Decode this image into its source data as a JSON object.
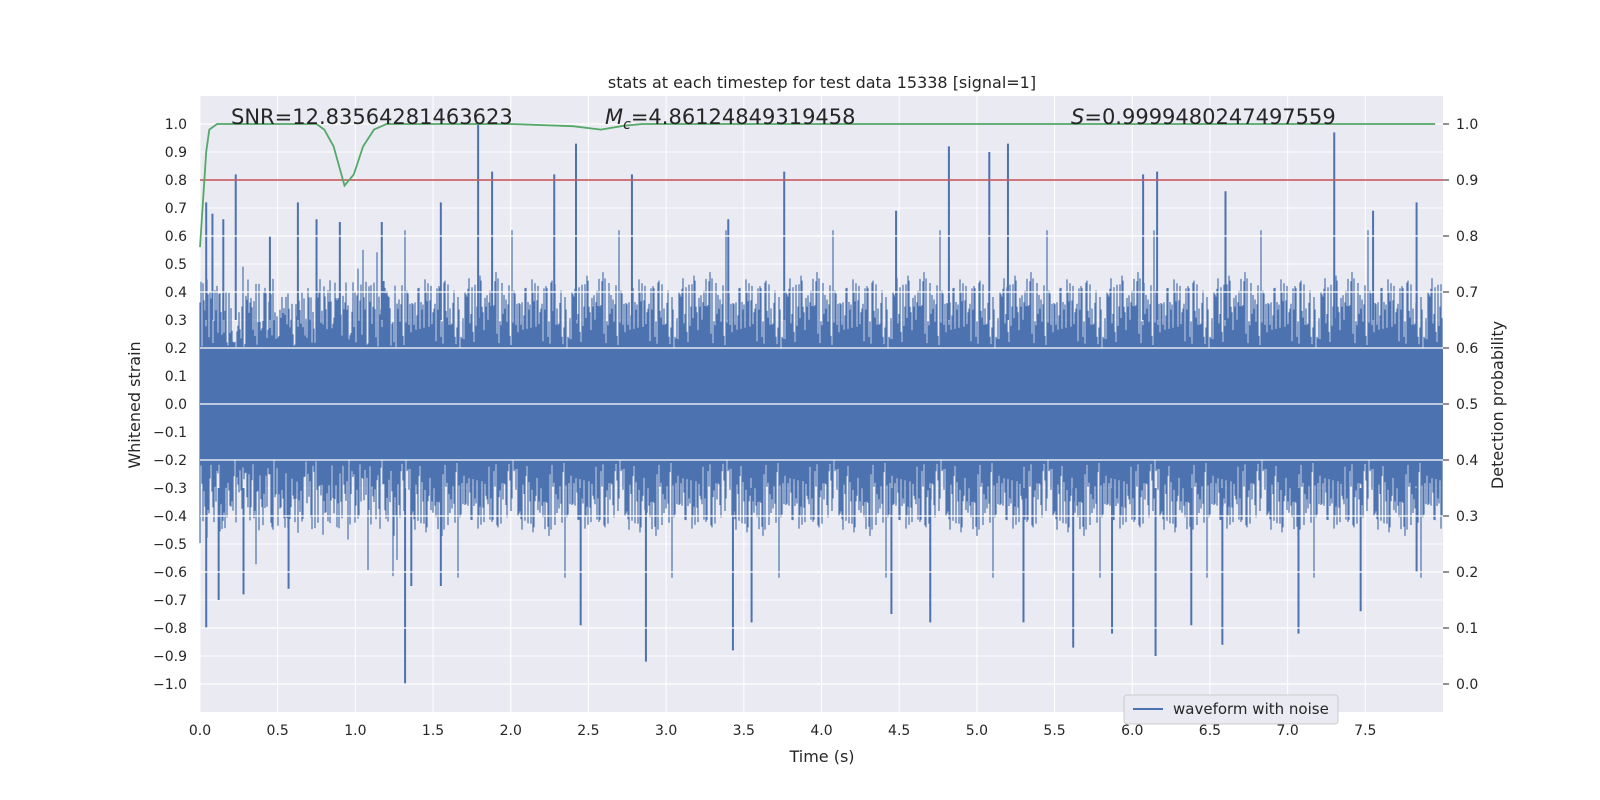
{
  "chart_data": {
    "type": "line",
    "title": "stats at each timestep for test data 15338 [signal=1]",
    "xlabel": "Time (s)",
    "ylabel": "Whitened strain",
    "y2label": "Detection probability",
    "xlim": [
      0.0,
      8.0
    ],
    "ylim": [
      -1.1,
      1.1
    ],
    "y2lim": [
      -0.05,
      1.05
    ],
    "xticks": [
      "0.0",
      "0.5",
      "1.0",
      "1.5",
      "2.0",
      "2.5",
      "3.0",
      "3.5",
      "4.0",
      "4.5",
      "5.0",
      "5.5",
      "6.0",
      "6.5",
      "7.0",
      "7.5"
    ],
    "yticks": [
      "1.0",
      "0.9",
      "0.8",
      "0.7",
      "0.6",
      "0.5",
      "0.4",
      "0.3",
      "0.2",
      "0.1",
      "0.0",
      "−0.1",
      "−0.2",
      "−0.3",
      "−0.4",
      "−0.5",
      "−0.6",
      "−0.7",
      "−0.8",
      "−0.9",
      "−1.0"
    ],
    "y2ticks": [
      "1.0",
      "0.9",
      "0.8",
      "0.7",
      "0.6",
      "0.5",
      "0.4",
      "0.3",
      "0.2",
      "0.1",
      "0.0"
    ],
    "grid": true,
    "annotations": {
      "snr": "SNR=12.83564281463623",
      "mc_symbol": "M",
      "mc_sub": "c",
      "mc_value": "=4.86124849319458",
      "s_symbol": "S",
      "s_value": "=0.9999480247497559"
    },
    "threshold": 0.9,
    "legend": {
      "label": "waveform with noise",
      "location": "lower-right"
    },
    "colors": {
      "waveform": "#4c72b0",
      "probability": "#55a868",
      "threshold": "#c44e52",
      "plot_bg": "#eaeaf2",
      "grid": "#ffffff"
    },
    "series": [
      {
        "name": "waveform with noise",
        "axis": "left",
        "duration_s": 8.0,
        "core_band": [
          -0.4,
          0.39
        ],
        "positive_spikes": [
          {
            "x": 0.04,
            "y": 0.72
          },
          {
            "x": 0.08,
            "y": 0.68
          },
          {
            "x": 0.15,
            "y": 0.66
          },
          {
            "x": 0.23,
            "y": 0.82
          },
          {
            "x": 0.45,
            "y": 0.6
          },
          {
            "x": 0.63,
            "y": 0.72
          },
          {
            "x": 0.75,
            "y": 0.66
          },
          {
            "x": 0.9,
            "y": 0.65
          },
          {
            "x": 1.17,
            "y": 0.65
          },
          {
            "x": 1.55,
            "y": 0.72
          },
          {
            "x": 1.79,
            "y": 1.0
          },
          {
            "x": 1.88,
            "y": 0.83
          },
          {
            "x": 2.28,
            "y": 0.82
          },
          {
            "x": 2.42,
            "y": 0.93
          },
          {
            "x": 2.78,
            "y": 0.82
          },
          {
            "x": 3.4,
            "y": 0.66
          },
          {
            "x": 3.76,
            "y": 0.83
          },
          {
            "x": 4.48,
            "y": 0.69
          },
          {
            "x": 4.82,
            "y": 0.92
          },
          {
            "x": 5.08,
            "y": 0.9
          },
          {
            "x": 5.2,
            "y": 0.93
          },
          {
            "x": 6.07,
            "y": 0.82
          },
          {
            "x": 6.16,
            "y": 0.83
          },
          {
            "x": 6.6,
            "y": 0.76
          },
          {
            "x": 7.3,
            "y": 0.97
          },
          {
            "x": 7.55,
            "y": 0.69
          },
          {
            "x": 7.83,
            "y": 0.72
          }
        ],
        "negative_spikes": [
          {
            "x": 0.04,
            "y": -0.8
          },
          {
            "x": 0.12,
            "y": -0.7
          },
          {
            "x": 0.28,
            "y": -0.68
          },
          {
            "x": 0.57,
            "y": -0.66
          },
          {
            "x": 1.32,
            "y": -1.0
          },
          {
            "x": 1.36,
            "y": -0.65
          },
          {
            "x": 1.55,
            "y": -0.65
          },
          {
            "x": 2.45,
            "y": -0.79
          },
          {
            "x": 2.87,
            "y": -0.92
          },
          {
            "x": 3.43,
            "y": -0.88
          },
          {
            "x": 3.55,
            "y": -0.78
          },
          {
            "x": 4.45,
            "y": -0.75
          },
          {
            "x": 4.7,
            "y": -0.78
          },
          {
            "x": 5.3,
            "y": -0.78
          },
          {
            "x": 5.62,
            "y": -0.87
          },
          {
            "x": 5.87,
            "y": -0.82
          },
          {
            "x": 6.15,
            "y": -0.9
          },
          {
            "x": 6.38,
            "y": -0.79
          },
          {
            "x": 6.58,
            "y": -0.86
          },
          {
            "x": 7.07,
            "y": -0.82
          },
          {
            "x": 7.47,
            "y": -0.74
          },
          {
            "x": 7.83,
            "y": -0.6
          }
        ]
      },
      {
        "name": "detection probability",
        "axis": "right",
        "x": [
          0.0,
          0.04,
          0.06,
          0.11,
          0.2,
          0.5,
          0.75,
          0.8,
          0.86,
          0.93,
          0.99,
          1.05,
          1.12,
          1.2,
          1.5,
          2.0,
          2.4,
          2.58,
          2.73,
          2.85,
          3.2,
          4.0,
          5.0,
          6.0,
          7.0,
          7.95
        ],
        "values": [
          0.78,
          0.95,
          0.99,
          1.0,
          1.0,
          1.0,
          1.0,
          0.99,
          0.96,
          0.89,
          0.91,
          0.96,
          0.99,
          1.0,
          1.0,
          1.0,
          0.996,
          0.99,
          0.997,
          1.0,
          1.0,
          1.0,
          1.0,
          1.0,
          1.0,
          1.0
        ]
      }
    ]
  }
}
